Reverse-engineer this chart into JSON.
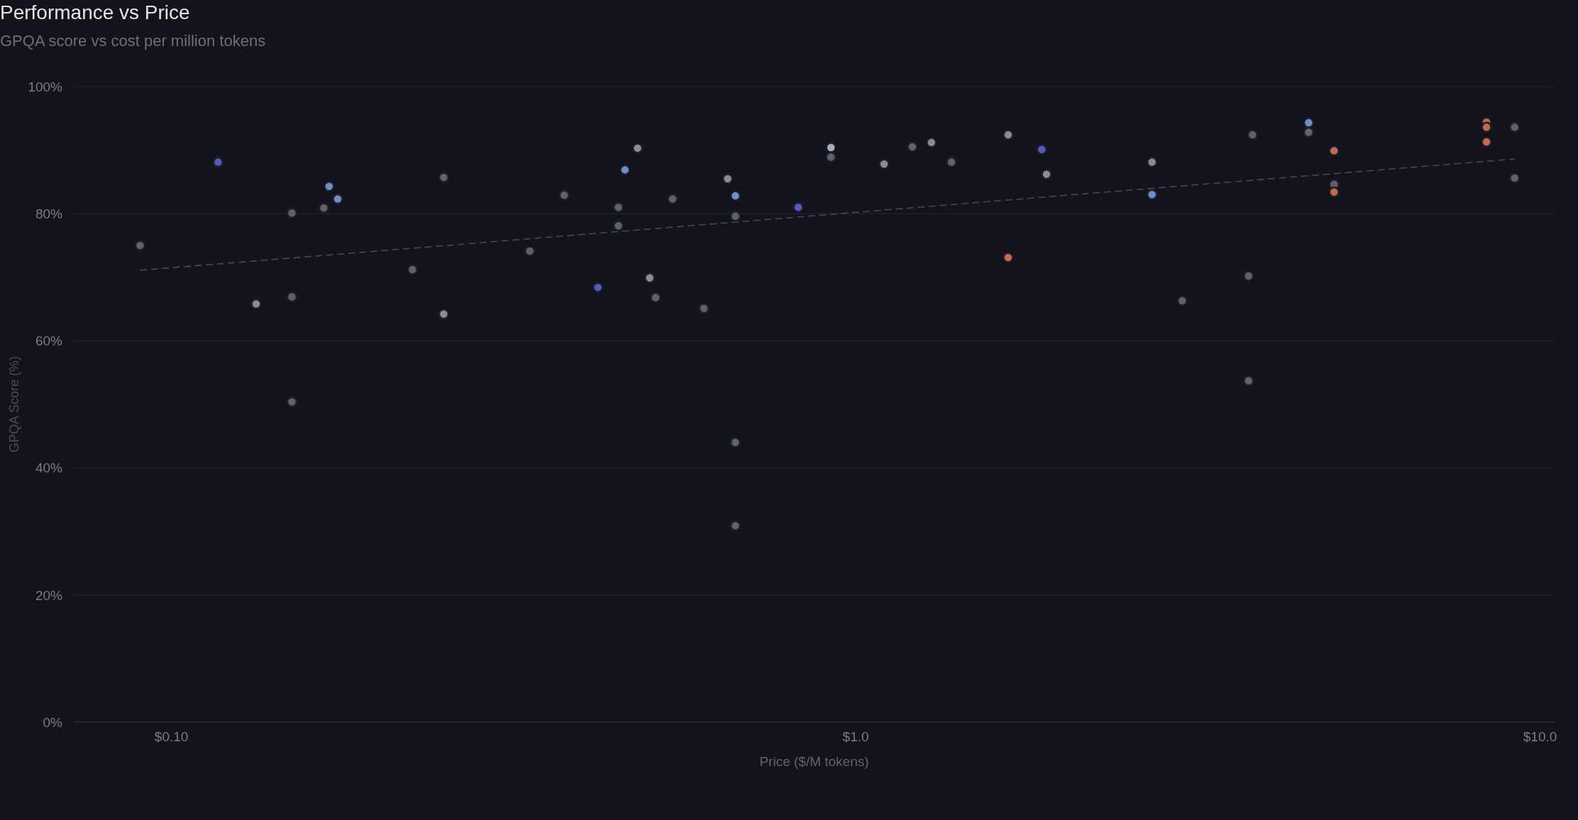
{
  "chart_data": {
    "type": "scatter",
    "title": "Performance vs Price",
    "subtitle": "GPQA score vs cost per million tokens",
    "xlabel": "Price ($/M tokens)",
    "ylabel": "GPQA Score (%)",
    "log": "x",
    "xlim": [
      0.072,
      10.5
    ],
    "xticks": [
      {
        "value": 0.1,
        "label": "$0.10"
      },
      {
        "value": 1,
        "label": "$1.0"
      },
      {
        "value": 10,
        "label": "$10.0"
      }
    ],
    "ylim": [
      0,
      100
    ],
    "yticks": [
      {
        "value": 0,
        "label": "0%"
      },
      {
        "value": 20,
        "label": "20%"
      },
      {
        "value": 40,
        "label": "40%"
      },
      {
        "value": 60,
        "label": "60%"
      },
      {
        "value": 80,
        "label": "80%"
      },
      {
        "value": 100,
        "label": "100%"
      }
    ],
    "grid": "y",
    "marker": "circle",
    "series": [
      {
        "color": "#4a4b53",
        "type": "line",
        "line_style": "dashed",
        "marker": "none",
        "x": [
          0.09,
          9.18
        ],
        "values": [
          71.1,
          88.6
        ]
      },
      {
        "color": "#5e6170",
        "x": [
          0.09,
          0.15,
          0.225,
          0.25,
          0.334,
          0.45,
          0.45,
          0.51,
          0.667,
          0.667,
          0.92,
          1.21,
          5.0
        ],
        "values": [
          75.0,
          66.9,
          71.2,
          85.7,
          74.1,
          81.0,
          78.1,
          66.8,
          79.6,
          44.0,
          88.9,
          90.5,
          84.6
        ]
      },
      {
        "color": "#626262",
        "x": [
          0.15,
          0.167,
          0.15,
          0.375,
          0.54,
          0.6,
          0.667,
          1.38,
          3.0,
          3.8,
          3.75,
          3.75,
          4.59,
          9.18,
          9.18
        ],
        "values": [
          80.1,
          80.9,
          50.4,
          82.9,
          82.3,
          65.1,
          30.9,
          88.1,
          66.3,
          92.4,
          70.2,
          53.7,
          92.8,
          93.6,
          85.6
        ]
      },
      {
        "color": "#8c8c8c",
        "x": [
          0.133,
          0.25,
          0.48,
          0.5,
          0.65,
          1.1,
          1.29,
          1.67,
          1.9,
          2.71
        ],
        "values": [
          65.8,
          64.2,
          90.3,
          69.9,
          85.5,
          87.8,
          91.2,
          92.4,
          86.2,
          88.1
        ]
      },
      {
        "color": "#a8afba",
        "x": [
          0.92
        ],
        "values": [
          90.4
        ]
      },
      {
        "color": "#6b8fce",
        "x": [
          0.17,
          0.175,
          0.46,
          0.667,
          2.71,
          4.59
        ],
        "values": [
          84.3,
          82.3,
          86.9,
          82.8,
          83.0,
          94.3
        ]
      },
      {
        "color": "#4d5bc2",
        "x": [
          0.117,
          0.42,
          0.824,
          1.87
        ],
        "values": [
          88.1,
          68.4,
          81.0,
          90.1
        ]
      },
      {
        "color": "#c46b4f",
        "x": [
          1.67,
          5.0,
          5.0,
          8.35,
          8.35,
          8.35
        ],
        "values": [
          73.1,
          89.9,
          83.4,
          94.4,
          93.6,
          91.3
        ]
      }
    ]
  }
}
